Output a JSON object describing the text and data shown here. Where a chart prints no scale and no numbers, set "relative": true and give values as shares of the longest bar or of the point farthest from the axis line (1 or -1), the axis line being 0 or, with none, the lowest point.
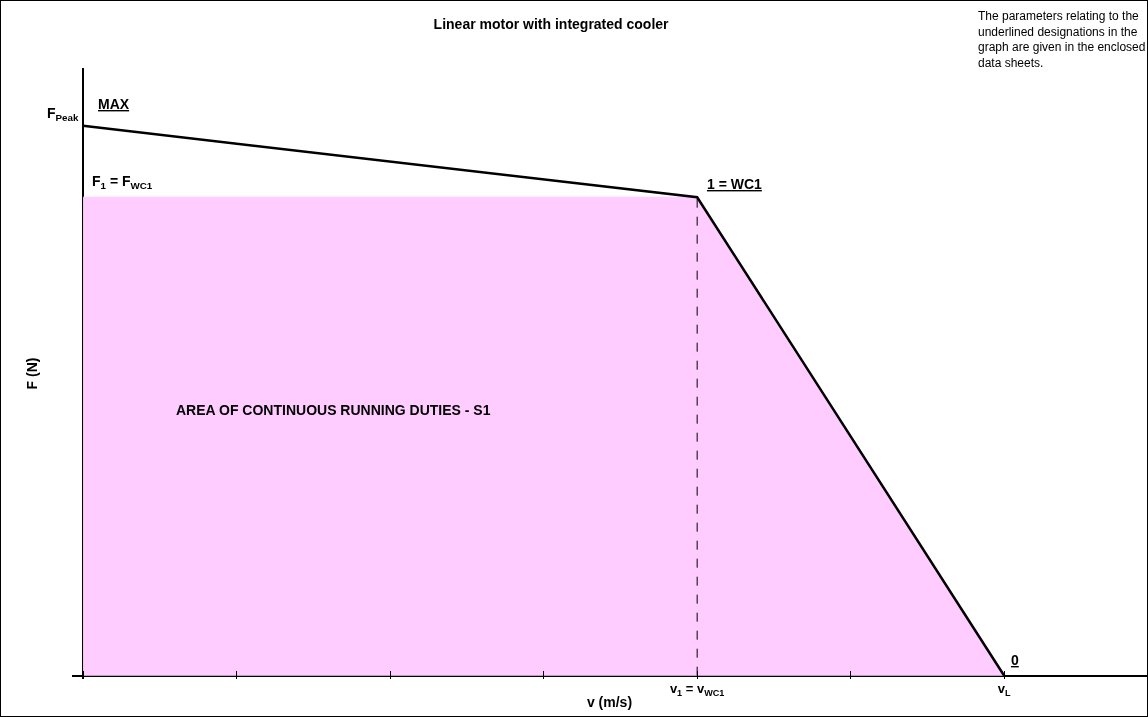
{
  "chart_data": {
    "type": "line",
    "title": "Linear motor with integrated cooler",
    "xlabel": "v (m/s)",
    "ylabel": "F (N)",
    "relative": true,
    "categories": [
      null,
      null,
      null,
      null,
      "v$_{1}$ = v$_{WC1}$",
      null,
      "v$_{L}$"
    ],
    "series": [
      {
        "type": "area",
        "color": "#ffccff",
        "values": [
          0.87,
          null,
          null,
          null,
          0.87,
          null,
          0
        ]
      },
      {
        "color": "#000000",
        "values": [
          1,
          null,
          null,
          null,
          0.87,
          null,
          0
        ]
      }
    ],
    "ref_lines": [
      {
        "axis": "x",
        "value": "v$_{1}$ = v$_{WC1}$",
        "color": "#000000",
        "line_style": "dashed"
      }
    ],
    "annotations": [
      {
        "text": "1 = WC1",
        "x": "v$_{1}$ = v$_{WC1}$",
        "y": 0.87
      },
      {
        "text": "0",
        "x": "v$_{L}$",
        "y": 0
      },
      "F$_{Peak}$",
      "MAX",
      "F$_{1}$ = F$_{WC1}$",
      "AREA OF CONTINUOUS RUNNING DUTIES - S1",
      "The parameters relating to the underlined designations in the graph are given in the enclosed data sheets."
    ],
    "grid": false,
    "marker": "none",
    "line_style": "solid"
  }
}
